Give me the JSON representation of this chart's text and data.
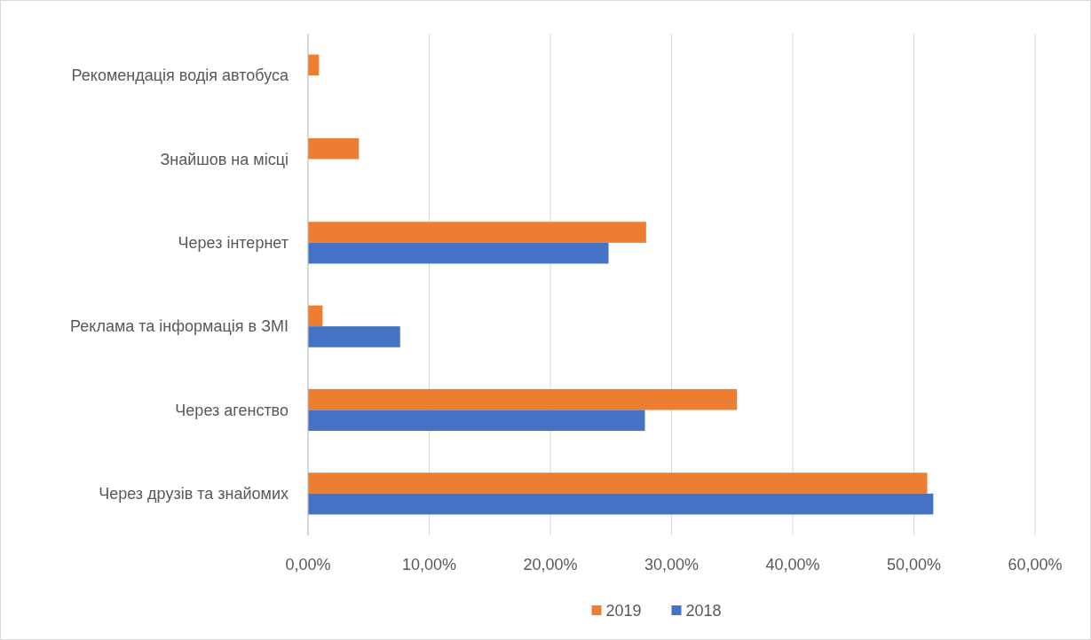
{
  "chart_data": {
    "type": "bar",
    "orientation": "horizontal",
    "categories": [
      "Рекомендація водія автобуса",
      "Знайшов на місці",
      "Через інтернет",
      "Реклама та інформація в ЗМІ",
      "Через агенство",
      "Через друзів та знайомих"
    ],
    "series": [
      {
        "name": "2019",
        "color": "#ed7d31",
        "values": [
          0.9,
          4.2,
          27.9,
          1.2,
          35.4,
          51.1
        ]
      },
      {
        "name": "2018",
        "color": "#4472c4",
        "values": [
          null,
          null,
          24.8,
          7.6,
          27.8,
          51.6
        ]
      }
    ],
    "xlim": [
      0,
      60
    ],
    "xticks": [
      {
        "value": 0,
        "label": "0,00%"
      },
      {
        "value": 10,
        "label": "10,00%"
      },
      {
        "value": 20,
        "label": "20,00%"
      },
      {
        "value": 30,
        "label": "30,00%"
      },
      {
        "value": 40,
        "label": "40,00%"
      },
      {
        "value": 50,
        "label": "50,00%"
      },
      {
        "value": 60,
        "label": "60,00%"
      }
    ],
    "grid": "x",
    "legend": "bottom"
  }
}
